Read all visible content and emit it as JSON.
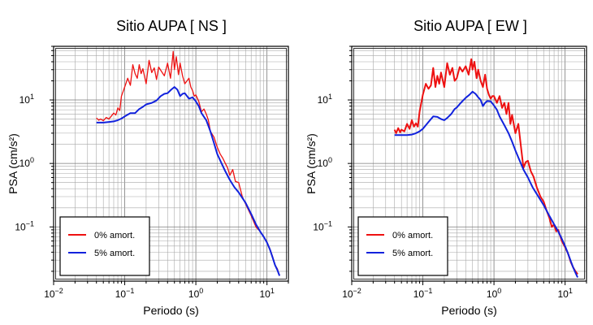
{
  "chart_data": [
    {
      "type": "line",
      "title": "Sitio AUPA [ NS ]",
      "xlabel": "Periodo (s)",
      "ylabel": "PSA (cm/s²)",
      "xscale": "log",
      "yscale": "log",
      "xlim": [
        0.01,
        20
      ],
      "ylim": [
        0.014,
        70
      ],
      "xticks": [
        {
          "value": 0.01,
          "base": "10",
          "exp": "−2"
        },
        {
          "value": 0.1,
          "base": "10",
          "exp": "−1"
        },
        {
          "value": 1,
          "base": "10",
          "exp": "0"
        },
        {
          "value": 10,
          "base": "10",
          "exp": "1"
        }
      ],
      "yticks": [
        {
          "value": 0.1,
          "base": "10",
          "exp": "−1"
        },
        {
          "value": 1,
          "base": "10",
          "exp": "0"
        },
        {
          "value": 10,
          "base": "10",
          "exp": "1"
        }
      ],
      "grid": true,
      "legend": "bottom-left",
      "series": [
        {
          "name": "0% amort.",
          "color": "#ee1111",
          "points": [
            [
              0.04,
              5.2
            ],
            [
              0.043,
              4.8
            ],
            [
              0.046,
              5.0
            ],
            [
              0.05,
              4.7
            ],
            [
              0.055,
              5.3
            ],
            [
              0.06,
              5.0
            ],
            [
              0.065,
              5.6
            ],
            [
              0.07,
              6.2
            ],
            [
              0.075,
              5.8
            ],
            [
              0.08,
              7.5
            ],
            [
              0.085,
              6.8
            ],
            [
              0.09,
              11.5
            ],
            [
              0.1,
              16
            ],
            [
              0.11,
              22
            ],
            [
              0.12,
              17
            ],
            [
              0.13,
              36
            ],
            [
              0.14,
              26
            ],
            [
              0.15,
              22
            ],
            [
              0.16,
              36
            ],
            [
              0.17,
              26
            ],
            [
              0.18,
              31
            ],
            [
              0.2,
              18
            ],
            [
              0.22,
              42
            ],
            [
              0.24,
              27
            ],
            [
              0.26,
              32
            ],
            [
              0.28,
              21
            ],
            [
              0.3,
              33
            ],
            [
              0.33,
              28
            ],
            [
              0.36,
              24
            ],
            [
              0.4,
              38
            ],
            [
              0.44,
              22
            ],
            [
              0.48,
              58
            ],
            [
              0.5,
              30
            ],
            [
              0.53,
              48
            ],
            [
              0.57,
              25
            ],
            [
              0.6,
              38
            ],
            [
              0.65,
              24
            ],
            [
              0.7,
              18
            ],
            [
              0.75,
              20
            ],
            [
              0.8,
              22
            ],
            [
              0.85,
              16
            ],
            [
              0.9,
              14
            ],
            [
              0.95,
              11.5
            ],
            [
              1.0,
              12
            ],
            [
              1.1,
              9.5
            ],
            [
              1.2,
              6.5
            ],
            [
              1.3,
              7.2
            ],
            [
              1.4,
              6.0
            ],
            [
              1.5,
              4.8
            ],
            [
              1.6,
              3.2
            ],
            [
              1.8,
              2.6
            ],
            [
              2.0,
              1.8
            ],
            [
              2.2,
              1.4
            ],
            [
              2.4,
              1.2
            ],
            [
              2.6,
              1.0
            ],
            [
              2.8,
              0.85
            ],
            [
              3.0,
              0.65
            ],
            [
              3.3,
              0.8
            ],
            [
              3.6,
              0.52
            ],
            [
              4.0,
              0.5
            ],
            [
              4.5,
              0.3
            ],
            [
              5.0,
              0.23
            ],
            [
              6.0,
              0.15
            ],
            [
              7.0,
              0.1
            ],
            [
              8.0,
              0.085
            ],
            [
              9.0,
              0.07
            ],
            [
              10.0,
              0.058
            ],
            [
              11.0,
              0.045
            ],
            [
              12.0,
              0.034
            ],
            [
              13.0,
              0.025
            ],
            [
              14.0,
              0.022
            ],
            [
              15.0,
              0.017
            ]
          ]
        },
        {
          "name": "5% amort.",
          "color": "#1122dd",
          "points": [
            [
              0.04,
              4.4
            ],
            [
              0.05,
              4.4
            ],
            [
              0.06,
              4.5
            ],
            [
              0.07,
              4.6
            ],
            [
              0.08,
              4.8
            ],
            [
              0.09,
              5.1
            ],
            [
              0.1,
              5.5
            ],
            [
              0.12,
              6.2
            ],
            [
              0.14,
              6.2
            ],
            [
              0.16,
              7.2
            ],
            [
              0.18,
              7.8
            ],
            [
              0.2,
              8.5
            ],
            [
              0.24,
              9.0
            ],
            [
              0.28,
              9.8
            ],
            [
              0.32,
              11.5
            ],
            [
              0.36,
              12.5
            ],
            [
              0.4,
              12.8
            ],
            [
              0.45,
              14.5
            ],
            [
              0.5,
              16
            ],
            [
              0.55,
              14.5
            ],
            [
              0.6,
              11.5
            ],
            [
              0.65,
              12.5
            ],
            [
              0.7,
              12.8
            ],
            [
              0.8,
              10.5
            ],
            [
              0.9,
              11.0
            ],
            [
              1.0,
              9.5
            ],
            [
              1.1,
              8.0
            ],
            [
              1.2,
              6.2
            ],
            [
              1.4,
              4.8
            ],
            [
              1.6,
              3.2
            ],
            [
              1.8,
              2.1
            ],
            [
              2.0,
              1.4
            ],
            [
              2.3,
              1.0
            ],
            [
              2.6,
              0.75
            ],
            [
              3.0,
              0.55
            ],
            [
              3.5,
              0.42
            ],
            [
              4.0,
              0.35
            ],
            [
              5.0,
              0.24
            ],
            [
              6.0,
              0.16
            ],
            [
              7.0,
              0.11
            ],
            [
              8.0,
              0.085
            ],
            [
              9.0,
              0.07
            ],
            [
              10.0,
              0.057
            ],
            [
              11.0,
              0.044
            ],
            [
              12.0,
              0.033
            ],
            [
              13.0,
              0.025
            ],
            [
              14.0,
              0.021
            ],
            [
              15.0,
              0.017
            ]
          ]
        }
      ]
    },
    {
      "type": "line",
      "title": "Sitio AUPA [ EW ]",
      "xlabel": "Periodo (s)",
      "ylabel": "PSA (cm/s²)",
      "xscale": "log",
      "yscale": "log",
      "xlim": [
        0.01,
        20
      ],
      "ylim": [
        0.014,
        70
      ],
      "xticks": [
        {
          "value": 0.01,
          "base": "10",
          "exp": "−2"
        },
        {
          "value": 0.1,
          "base": "10",
          "exp": "−1"
        },
        {
          "value": 1,
          "base": "10",
          "exp": "0"
        },
        {
          "value": 10,
          "base": "10",
          "exp": "1"
        }
      ],
      "yticks": [
        {
          "value": 0.1,
          "base": "10",
          "exp": "−1"
        },
        {
          "value": 1,
          "base": "10",
          "exp": "0"
        },
        {
          "value": 10,
          "base": "10",
          "exp": "1"
        }
      ],
      "grid": true,
      "legend": "bottom-left",
      "series": [
        {
          "name": "0% amort.",
          "color": "#ee1111",
          "points": [
            [
              0.04,
              3.4
            ],
            [
              0.042,
              3.0
            ],
            [
              0.045,
              3.6
            ],
            [
              0.048,
              3.1
            ],
            [
              0.05,
              3.4
            ],
            [
              0.055,
              3.2
            ],
            [
              0.06,
              4.2
            ],
            [
              0.065,
              3.5
            ],
            [
              0.07,
              4.8
            ],
            [
              0.075,
              3.8
            ],
            [
              0.08,
              4.3
            ],
            [
              0.085,
              3.8
            ],
            [
              0.09,
              6.5
            ],
            [
              0.1,
              12
            ],
            [
              0.11,
              18
            ],
            [
              0.12,
              15
            ],
            [
              0.13,
              17
            ],
            [
              0.14,
              32
            ],
            [
              0.15,
              16
            ],
            [
              0.16,
              24
            ],
            [
              0.17,
              18
            ],
            [
              0.18,
              27
            ],
            [
              0.2,
              16
            ],
            [
              0.22,
              38
            ],
            [
              0.24,
              25
            ],
            [
              0.26,
              32
            ],
            [
              0.28,
              20
            ],
            [
              0.3,
              22
            ],
            [
              0.33,
              33
            ],
            [
              0.36,
              28
            ],
            [
              0.4,
              34
            ],
            [
              0.44,
              25
            ],
            [
              0.48,
              44
            ],
            [
              0.5,
              30
            ],
            [
              0.53,
              40
            ],
            [
              0.57,
              22
            ],
            [
              0.6,
              30
            ],
            [
              0.65,
              20
            ],
            [
              0.7,
              16
            ],
            [
              0.75,
              25
            ],
            [
              0.8,
              15
            ],
            [
              0.85,
              12
            ],
            [
              0.9,
              10.5
            ],
            [
              0.95,
              11.5
            ],
            [
              1.0,
              11.5
            ],
            [
              1.1,
              9.0
            ],
            [
              1.2,
              11.5
            ],
            [
              1.3,
              7.5
            ],
            [
              1.4,
              9.0
            ],
            [
              1.5,
              6.0
            ],
            [
              1.6,
              9.0
            ],
            [
              1.7,
              4.2
            ],
            [
              1.8,
              5.8
            ],
            [
              2.0,
              3.0
            ],
            [
              2.2,
              4.2
            ],
            [
              2.4,
              1.8
            ],
            [
              2.6,
              0.85
            ],
            [
              2.8,
              1.05
            ],
            [
              3.0,
              1.1
            ],
            [
              3.3,
              0.75
            ],
            [
              3.6,
              0.62
            ],
            [
              4.0,
              0.42
            ],
            [
              4.5,
              0.3
            ],
            [
              5.0,
              0.25
            ],
            [
              5.5,
              0.18
            ],
            [
              6.0,
              0.14
            ],
            [
              6.5,
              0.1
            ],
            [
              7.0,
              0.11
            ],
            [
              7.5,
              0.085
            ],
            [
              8.0,
              0.09
            ],
            [
              9.0,
              0.06
            ],
            [
              10.0,
              0.048
            ],
            [
              11.0,
              0.038
            ],
            [
              12.0,
              0.028
            ],
            [
              13.0,
              0.023
            ],
            [
              14.0,
              0.02
            ],
            [
              15.0,
              0.018
            ]
          ]
        },
        {
          "name": "5% amort.",
          "color": "#1122dd",
          "points": [
            [
              0.04,
              2.8
            ],
            [
              0.05,
              2.8
            ],
            [
              0.06,
              2.8
            ],
            [
              0.07,
              2.85
            ],
            [
              0.08,
              3.0
            ],
            [
              0.09,
              3.2
            ],
            [
              0.1,
              3.5
            ],
            [
              0.11,
              4.0
            ],
            [
              0.12,
              4.5
            ],
            [
              0.14,
              5.5
            ],
            [
              0.16,
              5.4
            ],
            [
              0.18,
              5.0
            ],
            [
              0.2,
              4.8
            ],
            [
              0.22,
              5.2
            ],
            [
              0.25,
              6.0
            ],
            [
              0.28,
              7.2
            ],
            [
              0.3,
              7.6
            ],
            [
              0.33,
              8.6
            ],
            [
              0.36,
              9.6
            ],
            [
              0.4,
              10.8
            ],
            [
              0.45,
              12
            ],
            [
              0.5,
              13.5
            ],
            [
              0.55,
              12.5
            ],
            [
              0.6,
              11
            ],
            [
              0.65,
              10
            ],
            [
              0.7,
              8.0
            ],
            [
              0.75,
              9.0
            ],
            [
              0.8,
              9.6
            ],
            [
              0.9,
              9.5
            ],
            [
              1.0,
              8.2
            ],
            [
              1.1,
              7.0
            ],
            [
              1.2,
              5.5
            ],
            [
              1.4,
              4.0
            ],
            [
              1.6,
              3.0
            ],
            [
              1.8,
              2.2
            ],
            [
              2.0,
              1.6
            ],
            [
              2.3,
              1.1
            ],
            [
              2.6,
              0.8
            ],
            [
              3.0,
              0.6
            ],
            [
              3.5,
              0.42
            ],
            [
              4.0,
              0.33
            ],
            [
              5.0,
              0.22
            ],
            [
              6.0,
              0.15
            ],
            [
              7.0,
              0.11
            ],
            [
              8.0,
              0.085
            ],
            [
              9.0,
              0.065
            ],
            [
              10.0,
              0.05
            ],
            [
              11.0,
              0.038
            ],
            [
              12.0,
              0.029
            ],
            [
              13.0,
              0.023
            ],
            [
              14.0,
              0.019
            ],
            [
              15.0,
              0.016
            ]
          ]
        }
      ]
    }
  ]
}
